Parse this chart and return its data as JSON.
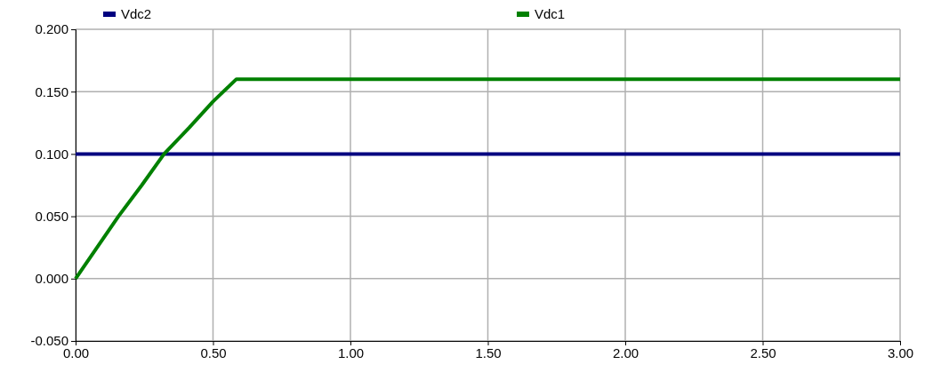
{
  "chart_data": {
    "type": "line",
    "xlim": [
      0,
      3
    ],
    "xticks": [
      {
        "value": 0,
        "label": "0.00"
      },
      {
        "value": 0.5,
        "label": "0.50"
      },
      {
        "value": 1,
        "label": "1.00"
      },
      {
        "value": 1.5,
        "label": "1.50"
      },
      {
        "value": 2,
        "label": "2.00"
      },
      {
        "value": 2.5,
        "label": "2.50"
      },
      {
        "value": 3,
        "label": "3.00"
      }
    ],
    "ylim": [
      -0.05,
      0.2
    ],
    "yticks": [
      {
        "value": -0.05,
        "label": "-0.050"
      },
      {
        "value": 0,
        "label": "0.000"
      },
      {
        "value": 0.05,
        "label": "0.050"
      },
      {
        "value": 0.1,
        "label": "0.100"
      },
      {
        "value": 0.15,
        "label": "0.150"
      },
      {
        "value": 0.2,
        "label": "0.200"
      }
    ],
    "grid": true,
    "legend": "top",
    "marker": "none",
    "line_style": "solid",
    "series": [
      {
        "name": "Vdc2",
        "color": "#000080",
        "x": [
          0,
          3
        ],
        "values": [
          0.1,
          0.1
        ]
      },
      {
        "name": "Vdc1",
        "color": "#008000",
        "x": [
          0,
          0.156,
          0.241,
          0.322,
          0.413,
          0.5,
          0.585,
          3
        ],
        "values": [
          0,
          0.05,
          0.075,
          0.1,
          0.121,
          0.142,
          0.16,
          0.16
        ]
      }
    ]
  }
}
